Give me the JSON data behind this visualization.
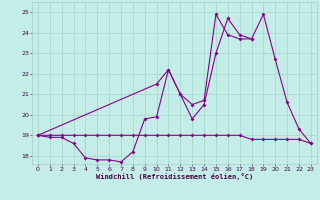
{
  "xlabel": "Windchill (Refroidissement éolien,°C)",
  "bg_color": "#c5ede8",
  "grid_color": "#a8d8d0",
  "line_color": "#880088",
  "xlim": [
    -0.5,
    23.5
  ],
  "ylim": [
    17.6,
    25.5
  ],
  "yticks": [
    18,
    19,
    20,
    21,
    22,
    23,
    24,
    25
  ],
  "xticks": [
    0,
    1,
    2,
    3,
    4,
    5,
    6,
    7,
    8,
    9,
    10,
    11,
    12,
    13,
    14,
    15,
    16,
    17,
    18,
    19,
    20,
    21,
    22,
    23
  ],
  "line1_x": [
    0,
    1,
    2,
    3,
    4,
    5,
    6,
    7,
    8,
    9,
    10,
    11,
    12,
    13,
    14,
    15,
    16,
    17,
    18
  ],
  "line1_y": [
    19.0,
    18.9,
    18.9,
    18.6,
    17.9,
    17.8,
    17.8,
    17.7,
    18.2,
    19.8,
    19.9,
    22.2,
    21.0,
    19.8,
    20.5,
    23.0,
    24.7,
    23.9,
    23.7
  ],
  "line2_x": [
    0,
    1,
    2,
    3,
    4,
    5,
    6,
    7,
    8,
    9,
    10,
    11,
    12,
    13,
    14,
    15,
    16,
    17,
    18,
    19,
    20,
    21,
    22,
    23
  ],
  "line2_y": [
    19.0,
    19.0,
    19.0,
    19.0,
    19.0,
    19.0,
    19.0,
    19.0,
    19.0,
    19.0,
    19.0,
    19.0,
    19.0,
    19.0,
    19.0,
    19.0,
    19.0,
    19.0,
    18.8,
    18.8,
    18.8,
    18.8,
    18.8,
    18.6
  ],
  "line3_x": [
    0,
    10,
    11,
    12,
    13,
    14,
    15,
    16,
    17,
    18,
    19,
    20,
    21,
    22,
    23
  ],
  "line3_y": [
    19.0,
    21.5,
    22.2,
    21.0,
    20.5,
    20.7,
    24.9,
    23.9,
    23.7,
    23.7,
    24.9,
    22.7,
    20.6,
    19.3,
    18.6
  ]
}
